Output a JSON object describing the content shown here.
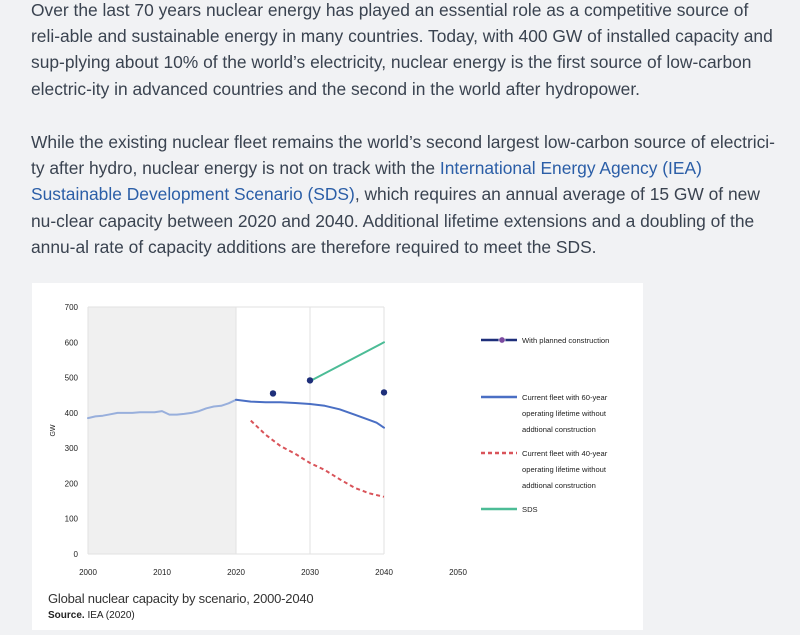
{
  "article": {
    "p1": "Over the last 70 years nuclear energy has played an essential role as a competitive source of reli-able and sustainable energy in many countries. Today, with 400 GW of installed capacity and sup-plying about 10% of the world’s electricity, nuclear energy is the first source of low-carbon electric-ity in advanced countries and the second in the world after hydropower.",
    "p2_before": "While the existing nuclear fleet remains the world’s second largest low-carbon source of electrici-ty after hydro, nuclear energy is not on track with the ",
    "p2_link": "International Energy Agency (IEA) Sustainable Development Scenario (SDS)",
    "p2_after": ", which requires an annual average of 15 GW of new nu-clear capacity between 2020 and 2040. Additional lifetime extensions and a doubling of the annu-al rate of capacity additions are therefore required to meet the SDS."
  },
  "figure": {
    "caption": "Global nuclear capacity by scenario, 2000-2040",
    "source_label": "Source.",
    "source_text": " IEA (2020)"
  },
  "chart_data": {
    "type": "line",
    "title": "Global nuclear capacity by scenario, 2000-2040",
    "xlabel": "",
    "ylabel": "GW",
    "xlim": [
      2000,
      2050
    ],
    "ylim": [
      0,
      700
    ],
    "xticks": [
      2000,
      2010,
      2020,
      2030,
      2040,
      2050
    ],
    "yticks": [
      0,
      100,
      200,
      300,
      400,
      500,
      600,
      700
    ],
    "historical_shading": [
      2000,
      2020
    ],
    "grid_x": [
      2000,
      2020,
      2030,
      2040
    ],
    "series": [
      {
        "name": "Historical",
        "style": "solid",
        "color": "#98afdc",
        "x": [
          2000,
          2001,
          2002,
          2003,
          2004,
          2005,
          2006,
          2007,
          2008,
          2009,
          2010,
          2011,
          2012,
          2013,
          2014,
          2015,
          2016,
          2017,
          2018,
          2019,
          2020
        ],
        "y": [
          385,
          390,
          392,
          396,
          400,
          400,
          400,
          402,
          402,
          402,
          405,
          395,
          395,
          397,
          400,
          405,
          413,
          418,
          420,
          427,
          437
        ]
      },
      {
        "name": "Current fleet with 60-year operating lifetime without addtional construction",
        "style": "solid",
        "color": "#4a6fc4",
        "x": [
          2020,
          2022,
          2024,
          2026,
          2028,
          2030,
          2032,
          2034,
          2036,
          2038,
          2039,
          2040
        ],
        "y": [
          437,
          432,
          430,
          430,
          428,
          425,
          420,
          410,
          395,
          380,
          372,
          358
        ]
      },
      {
        "name": "Current fleet with 40-year operating lifetime without addtional construction",
        "style": "dashed",
        "color": "#d9545a",
        "x": [
          2022,
          2024,
          2026,
          2028,
          2030,
          2032,
          2034,
          2036,
          2038,
          2040
        ],
        "y": [
          378,
          338,
          306,
          284,
          258,
          238,
          212,
          188,
          172,
          162
        ]
      },
      {
        "name": "SDS",
        "style": "solid",
        "color": "#4cbc96",
        "x": [
          2030,
          2040
        ],
        "y": [
          490,
          600
        ]
      },
      {
        "name": "With planned construction",
        "style": "markers",
        "color": "#1e2f7a",
        "x": [
          2025,
          2030,
          2040
        ],
        "y": [
          455,
          492,
          458
        ]
      }
    ],
    "legend": [
      {
        "label_lines": [
          "With planned construction"
        ],
        "style": "marker-line",
        "color": "#1e2f7a",
        "marker_color": "#7b4aa0"
      },
      {
        "label_lines": [
          "Current fleet with 60-year",
          "operating lifetime without",
          "addtional construction"
        ],
        "style": "solid",
        "color": "#4a6fc4"
      },
      {
        "label_lines": [
          "Current fleet with 40-year",
          "operating lifetime without",
          "addtional construction"
        ],
        "style": "dashed",
        "color": "#d9545a"
      },
      {
        "label_lines": [
          "SDS"
        ],
        "style": "solid",
        "color": "#4cbc96"
      }
    ],
    "legend_position": "right"
  }
}
